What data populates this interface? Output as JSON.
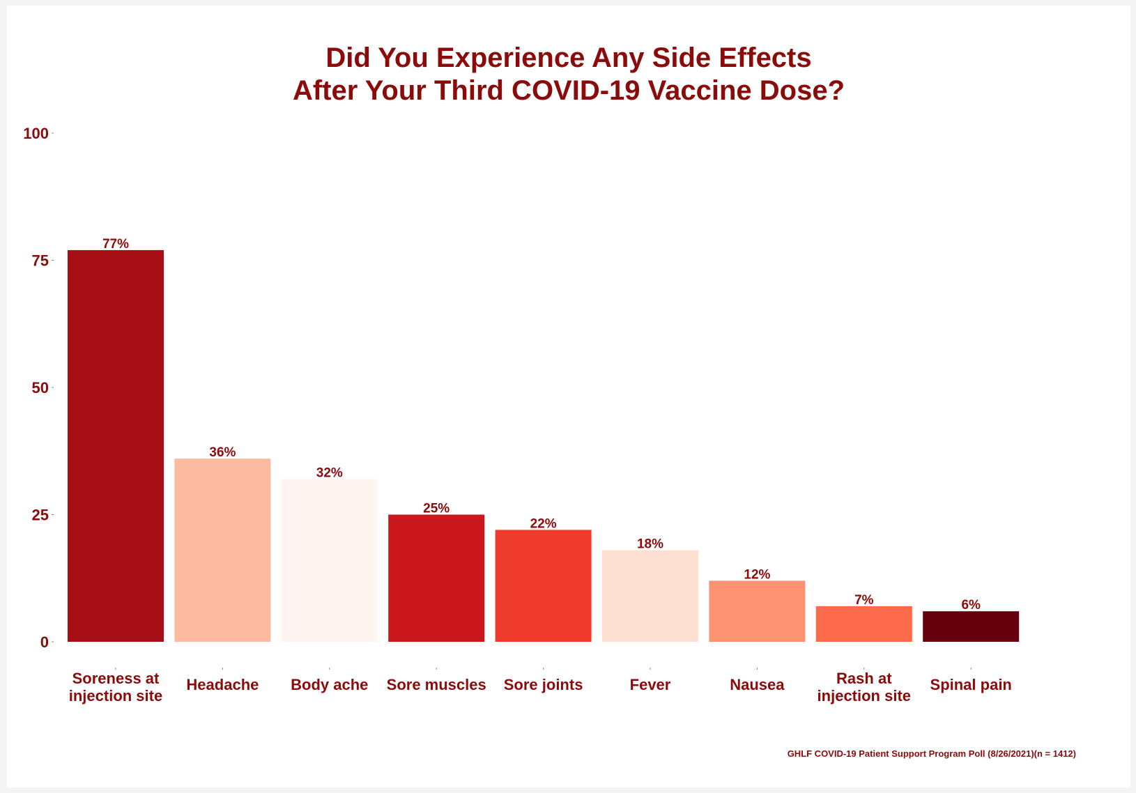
{
  "chart_data": {
    "type": "bar",
    "title_lines": [
      "Did You Experience Any Side Effects",
      "After Your Third COVID-19 Vaccine Dose?"
    ],
    "categories": [
      [
        "Soreness at",
        "injection site"
      ],
      [
        "Headache"
      ],
      [
        "Body ache"
      ],
      [
        "Sore muscles"
      ],
      [
        "Sore joints"
      ],
      [
        "Fever"
      ],
      [
        "Nausea"
      ],
      [
        "Rash at",
        "injection site"
      ],
      [
        "Spinal pain"
      ]
    ],
    "values": [
      77,
      36,
      32,
      25,
      22,
      18,
      12,
      7,
      6
    ],
    "value_labels": [
      "77%",
      "36%",
      "32%",
      "25%",
      "22%",
      "18%",
      "12%",
      "7%",
      "6%"
    ],
    "bar_colors": [
      "#a50f15",
      "#fcbba1",
      "#fff5f0",
      "#cb181d",
      "#ef3b2c",
      "#fee0d2",
      "#fc9272",
      "#fb6a4a",
      "#67000d"
    ],
    "ylim": [
      0,
      100
    ],
    "yticks": [
      0,
      25,
      50,
      75,
      100
    ],
    "xlabel": "",
    "ylabel": "",
    "grid": false,
    "legend": "none",
    "caption": "GHLF COVID-19 Patient Support Program Poll (8/26/2021)(n = 1412)",
    "text_color": "#8b0a0a"
  }
}
